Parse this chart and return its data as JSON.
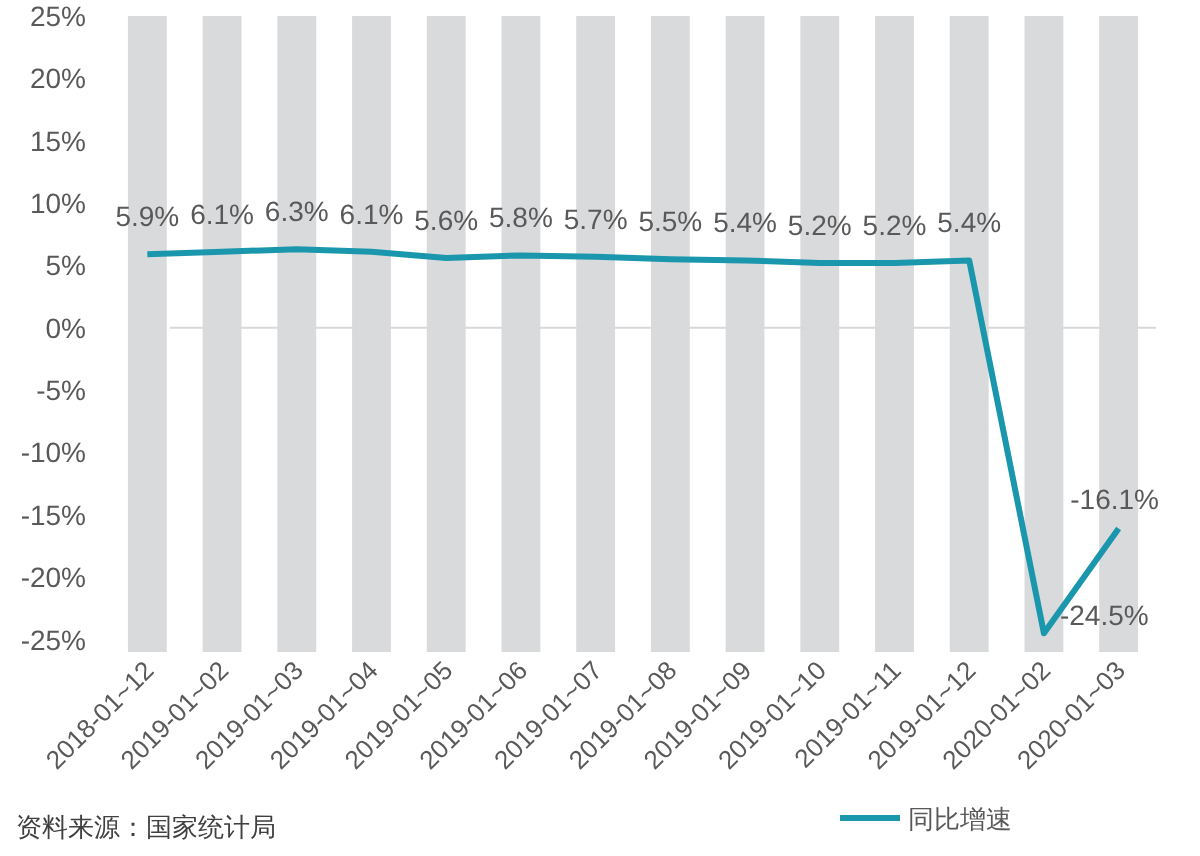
{
  "chart_data": {
    "type": "line",
    "categories": [
      "2018-01~12",
      "2019-01~02",
      "2019-01~03",
      "2019-01~04",
      "2019-01~05",
      "2019-01~06",
      "2019-01~07",
      "2019-01~08",
      "2019-01~09",
      "2019-01~10",
      "2019-01~11",
      "2019-01~12",
      "2020-01~02",
      "2020-01~03"
    ],
    "series": [
      {
        "type": "bar",
        "color": "#d9dadc",
        "base": [
          -26,
          -26,
          -26,
          -26,
          -26,
          -26,
          -26,
          -26,
          -26,
          -26,
          -26,
          -26,
          -26,
          -26
        ],
        "values": [
          51,
          51,
          51,
          51,
          51,
          51,
          51,
          51,
          51,
          51,
          51,
          51,
          51,
          51
        ]
      },
      {
        "name": "同比增速",
        "color": "#1a96ad",
        "values": [
          5.9,
          6.1,
          6.3,
          6.1,
          5.6,
          5.8,
          5.7,
          5.5,
          5.4,
          5.2,
          5.2,
          5.4,
          -24.5,
          -16.1
        ],
        "value_labels": [
          "5.9%",
          "6.1%",
          "6.3%",
          "6.1%",
          "5.6%",
          "5.8%",
          "5.7%",
          "5.5%",
          "5.4%",
          "5.2%",
          "5.2%",
          "5.4%",
          "-24.5%",
          "-16.1%"
        ]
      }
    ],
    "ylim": [
      -26,
      25
    ],
    "yticks": [
      {
        "value": -25,
        "label": "-25%"
      },
      {
        "value": -20,
        "label": "-20%"
      },
      {
        "value": -15,
        "label": "-15%"
      },
      {
        "value": -10,
        "label": "-10%"
      },
      {
        "value": -5,
        "label": "-5%"
      },
      {
        "value": 0,
        "label": "0%"
      },
      {
        "value": 5,
        "label": "5%"
      },
      {
        "value": 10,
        "label": "10%"
      },
      {
        "value": 15,
        "label": "15%"
      },
      {
        "value": 20,
        "label": "20%"
      },
      {
        "value": 25,
        "label": "25%"
      }
    ],
    "ref_lines": [
      {
        "axis": "y",
        "value": 0,
        "color": "#d9d9d9"
      }
    ],
    "grid": false,
    "legend": "bottom right",
    "marker": "none",
    "line_style": "solid",
    "annotations": [
      "资料来源：国家统计局"
    ]
  }
}
